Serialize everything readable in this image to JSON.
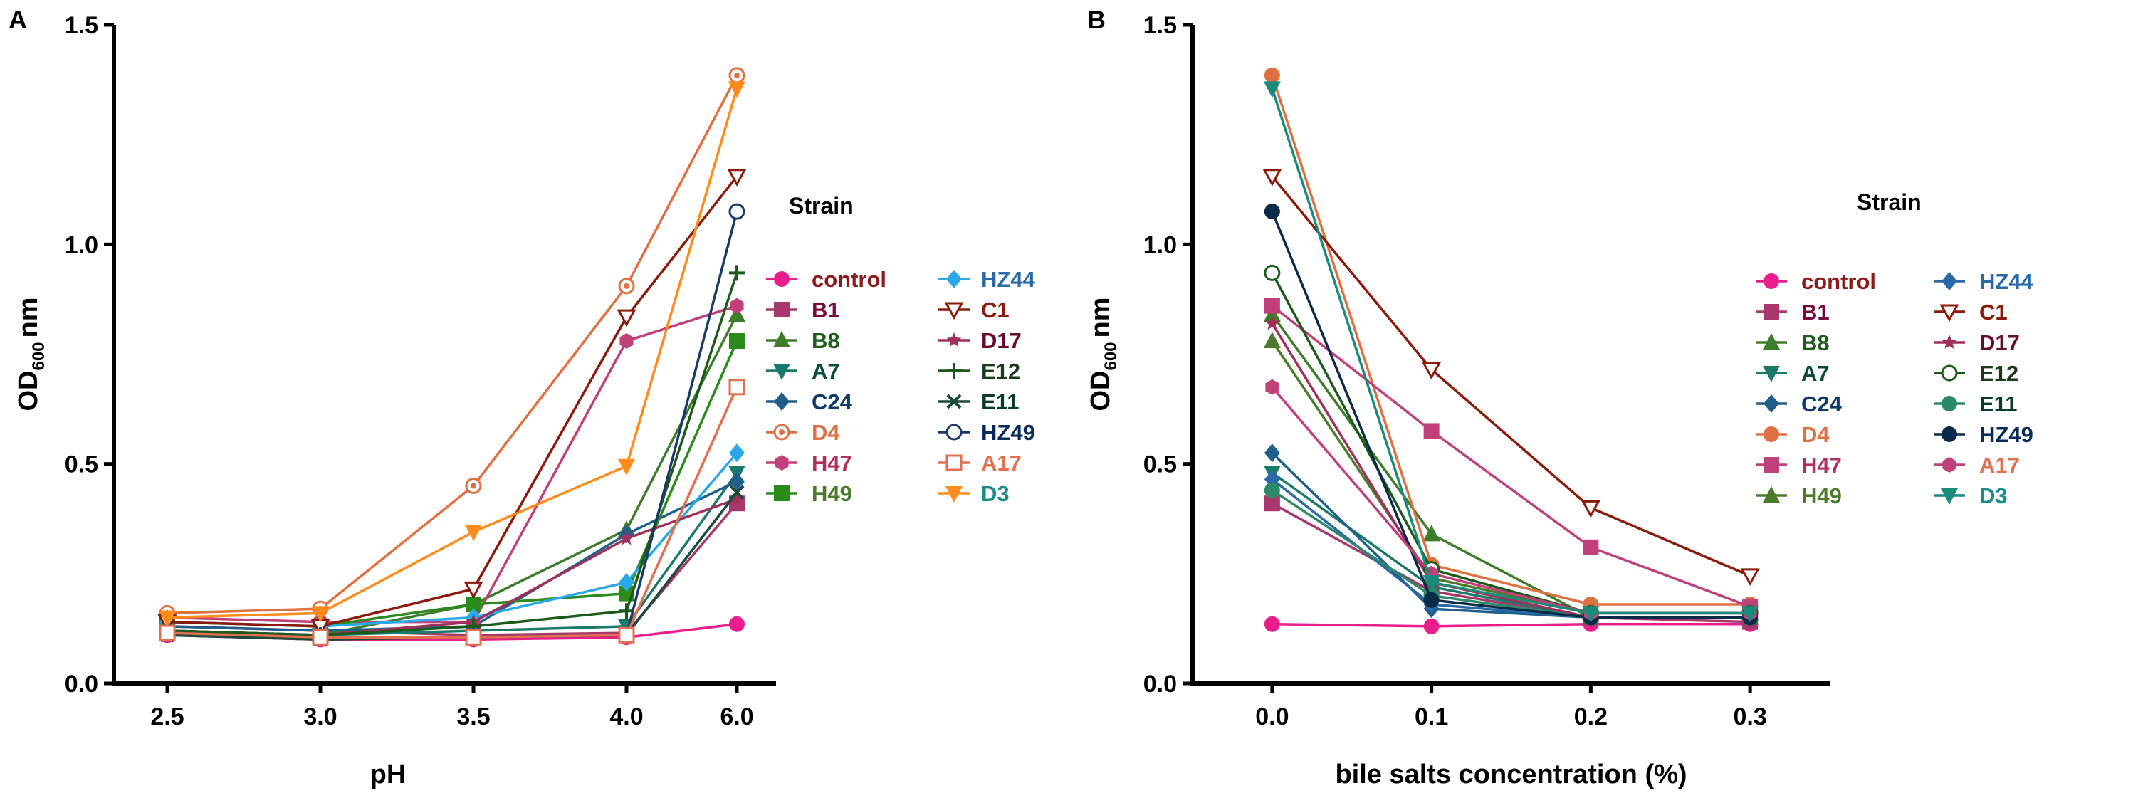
{
  "chart_data": [
    {
      "panel": "A",
      "type": "line",
      "xlabel": "pH",
      "ylabel": "OD600nm",
      "ylabel_main": "OD",
      "ylabel_sub": "600",
      "ylabel_unit": "nm",
      "categories": [
        "2.5",
        "3.0",
        "3.5",
        "4.0",
        "6.0"
      ],
      "ylim": [
        0,
        1.5
      ],
      "yticks": [
        "0.0",
        "0.5",
        "1.0",
        "1.5"
      ],
      "grid": false,
      "legend_title": "Strain",
      "legend_position": "right",
      "series": [
        {
          "name": "control",
          "color": "#e91e8c",
          "label_color": "#8b1a1a",
          "marker": "circle",
          "values": [
            0.11,
            0.1,
            0.1,
            0.105,
            0.135
          ]
        },
        {
          "name": "B1",
          "color": "#a8386b",
          "label_color": "#7a0a3d",
          "marker": "square",
          "values": [
            0.13,
            0.12,
            0.11,
            0.115,
            0.41
          ]
        },
        {
          "name": "B8",
          "color": "#3d7d2a",
          "label_color": "#1e5c1e",
          "marker": "triangle-up",
          "values": [
            0.12,
            0.11,
            0.18,
            0.35,
            0.84
          ]
        },
        {
          "name": "A7",
          "color": "#1a7a6a",
          "label_color": "#0a4a3a",
          "marker": "triangle-down",
          "values": [
            0.12,
            0.11,
            0.12,
            0.13,
            0.48
          ]
        },
        {
          "name": "C24",
          "color": "#1f5f8b",
          "label_color": "#0d3a6a",
          "marker": "diamond",
          "values": [
            0.13,
            0.12,
            0.13,
            0.34,
            0.46
          ]
        },
        {
          "name": "D4",
          "color": "#e07040",
          "label_color": "#e07040",
          "marker": "circle-dot",
          "values": [
            0.16,
            0.17,
            0.45,
            0.905,
            1.385
          ]
        },
        {
          "name": "H47",
          "color": "#c0407a",
          "label_color": "#b0305a",
          "marker": "hexagon",
          "values": [
            0.15,
            0.14,
            0.14,
            0.78,
            0.86
          ]
        },
        {
          "name": "H49",
          "color": "#2a8a1a",
          "label_color": "#4a7a2a",
          "marker": "square",
          "values": [
            0.14,
            0.13,
            0.18,
            0.205,
            0.78
          ]
        },
        {
          "name": "HZ44",
          "color": "#2aa8e8",
          "label_color": "#2a6aa8",
          "marker": "diamond",
          "values": [
            0.14,
            0.13,
            0.15,
            0.23,
            0.525
          ]
        },
        {
          "name": "C1",
          "color": "#8b1a0a",
          "label_color": "#8b1a0a",
          "marker": "triangle-down-open",
          "values": [
            0.14,
            0.13,
            0.215,
            0.835,
            1.155
          ]
        },
        {
          "name": "D17",
          "color": "#a0305a",
          "label_color": "#6a0a2a",
          "marker": "star",
          "values": [
            0.12,
            0.11,
            0.14,
            0.33,
            0.42
          ]
        },
        {
          "name": "E12",
          "color": "#1a5a1a",
          "label_color": "#1a3a1a",
          "marker": "plus",
          "values": [
            0.12,
            0.11,
            0.13,
            0.165,
            0.935
          ]
        },
        {
          "name": "E11",
          "color": "#1a4a3a",
          "label_color": "#0a3a2a",
          "marker": "cross",
          "values": [
            0.11,
            0.1,
            0.105,
            0.11,
            0.435
          ]
        },
        {
          "name": "HZ49",
          "color": "#1a3a6a",
          "label_color": "#0a2a5a",
          "marker": "circle-open",
          "values": [
            0.115,
            0.105,
            0.105,
            0.11,
            1.075
          ]
        },
        {
          "name": "A17",
          "color": "#e07050",
          "label_color": "#e07050",
          "marker": "square-open",
          "values": [
            0.115,
            0.105,
            0.105,
            0.11,
            0.675
          ]
        },
        {
          "name": "D3",
          "color": "#ff8c1a",
          "label_color": "#1a8a8a",
          "marker": "triangle-down",
          "values": [
            0.15,
            0.16,
            0.345,
            0.495,
            1.355
          ]
        }
      ]
    },
    {
      "panel": "B",
      "type": "line",
      "xlabel": "bile salts concentration (%)",
      "ylabel": "OD600nm",
      "ylabel_main": "OD",
      "ylabel_sub": "600",
      "ylabel_unit": "nm",
      "x": [
        0.0,
        0.1,
        0.2,
        0.3
      ],
      "xticks": [
        "0.0",
        "0.1",
        "0.2",
        "0.3"
      ],
      "xlim": [
        -0.05,
        0.35
      ],
      "ylim": [
        0,
        1.5
      ],
      "yticks": [
        "0.0",
        "0.5",
        "1.0",
        "1.5"
      ],
      "grid": false,
      "legend_title": "Strain",
      "legend_position": "right",
      "series": [
        {
          "name": "control",
          "color": "#e91e8c",
          "label_color": "#8b1a1a",
          "marker": "circle",
          "values": [
            0.135,
            0.13,
            0.135,
            0.135
          ]
        },
        {
          "name": "B1",
          "color": "#a8386b",
          "label_color": "#7a0a3d",
          "marker": "square",
          "values": [
            0.41,
            0.21,
            0.15,
            0.14
          ]
        },
        {
          "name": "B8",
          "color": "#3d7d2a",
          "label_color": "#1e5c1e",
          "marker": "triangle-up",
          "values": [
            0.84,
            0.34,
            0.15,
            0.15
          ]
        },
        {
          "name": "A7",
          "color": "#1a7a6a",
          "label_color": "#0a4a3a",
          "marker": "triangle-down",
          "values": [
            0.48,
            0.22,
            0.15,
            0.15
          ]
        },
        {
          "name": "C24",
          "color": "#1f5f8b",
          "label_color": "#0d3a6a",
          "marker": "diamond",
          "values": [
            0.525,
            0.17,
            0.15,
            0.15
          ]
        },
        {
          "name": "D4",
          "color": "#e07040",
          "label_color": "#e07040",
          "marker": "circle",
          "values": [
            1.385,
            0.27,
            0.18,
            0.18
          ]
        },
        {
          "name": "H47",
          "color": "#c0407a",
          "label_color": "#b0305a",
          "marker": "square",
          "values": [
            0.86,
            0.575,
            0.31,
            0.175
          ]
        },
        {
          "name": "H49",
          "color": "#4a7a2a",
          "label_color": "#4a7a2a",
          "marker": "triangle-up",
          "values": [
            0.78,
            0.24,
            0.16,
            0.16
          ]
        },
        {
          "name": "HZ44",
          "color": "#2a6aa8",
          "label_color": "#2a6aa8",
          "marker": "diamond",
          "values": [
            0.465,
            0.18,
            0.15,
            0.15
          ]
        },
        {
          "name": "C1",
          "color": "#8b1a0a",
          "label_color": "#8b1a0a",
          "marker": "triangle-down-open",
          "values": [
            1.155,
            0.715,
            0.4,
            0.245
          ]
        },
        {
          "name": "D17",
          "color": "#a0305a",
          "label_color": "#6a0a2a",
          "marker": "star",
          "values": [
            0.82,
            0.23,
            0.15,
            0.15
          ]
        },
        {
          "name": "E12",
          "color": "#1a5a1a",
          "label_color": "#1a3a1a",
          "marker": "circle-open",
          "values": [
            0.935,
            0.26,
            0.16,
            0.16
          ]
        },
        {
          "name": "E11",
          "color": "#2a8a6a",
          "label_color": "#0a3a2a",
          "marker": "circle",
          "values": [
            0.44,
            0.2,
            0.15,
            0.15
          ]
        },
        {
          "name": "HZ49",
          "color": "#0a2a4a",
          "label_color": "#0a2a5a",
          "marker": "circle",
          "values": [
            1.075,
            0.19,
            0.15,
            0.15
          ]
        },
        {
          "name": "A17",
          "color": "#c0407a",
          "label_color": "#e07050",
          "marker": "hexagon",
          "values": [
            0.675,
            0.25,
            0.16,
            0.16
          ]
        },
        {
          "name": "D3",
          "color": "#1a8a7a",
          "label_color": "#1a8a8a",
          "marker": "triangle-down",
          "values": [
            1.355,
            0.23,
            0.16,
            0.16
          ]
        }
      ]
    }
  ]
}
